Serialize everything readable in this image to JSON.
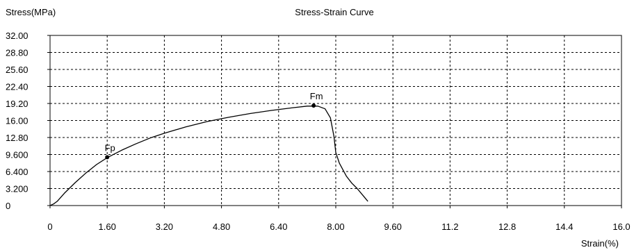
{
  "chart_data": {
    "type": "line",
    "title": "Stress-Strain Curve",
    "ylabel": "Stress(MPa)",
    "xlabel": "Strain(%)",
    "xlim": [
      0,
      16.0
    ],
    "ylim": [
      0,
      32.0
    ],
    "grid": true,
    "x_tick_values": [
      0,
      1.6,
      3.2,
      4.8,
      6.4,
      8.0,
      9.6,
      11.2,
      12.8,
      14.4,
      16.0
    ],
    "x_tick_labels": [
      "0",
      "1.60",
      "3.20",
      "4.80",
      "6.40",
      "8.00",
      "9.60",
      "11.2",
      "12.8",
      "14.4",
      "16.0"
    ],
    "y_tick_values": [
      0,
      3.2,
      6.4,
      9.6,
      12.8,
      16.0,
      19.2,
      22.4,
      25.6,
      28.8,
      32.0
    ],
    "y_tick_labels": [
      "0",
      "3.200",
      "6.400",
      "9.600",
      "12.80",
      "16.00",
      "19.20",
      "22.40",
      "25.60",
      "28.80",
      "32.00"
    ],
    "series": [
      {
        "color": "#000000",
        "points": [
          [
            0.0,
            0.0
          ],
          [
            0.1,
            0.3
          ],
          [
            0.2,
            0.8
          ],
          [
            0.4,
            2.3
          ],
          [
            0.7,
            4.3
          ],
          [
            1.0,
            6.1
          ],
          [
            1.3,
            7.7
          ],
          [
            1.6,
            9.0
          ],
          [
            2.0,
            10.4
          ],
          [
            2.4,
            11.6
          ],
          [
            2.8,
            12.7
          ],
          [
            3.2,
            13.6
          ],
          [
            3.8,
            14.8
          ],
          [
            4.4,
            15.8
          ],
          [
            5.0,
            16.6
          ],
          [
            5.6,
            17.3
          ],
          [
            6.2,
            17.9
          ],
          [
            6.8,
            18.4
          ],
          [
            7.2,
            18.7
          ],
          [
            7.5,
            18.7
          ],
          [
            7.7,
            18.2
          ],
          [
            7.85,
            16.5
          ],
          [
            7.95,
            13.0
          ],
          [
            8.0,
            10.0
          ],
          [
            8.1,
            8.0
          ],
          [
            8.3,
            5.5
          ],
          [
            8.45,
            4.2
          ],
          [
            8.6,
            3.2
          ],
          [
            8.75,
            2.0
          ],
          [
            8.9,
            0.8
          ]
        ]
      }
    ],
    "annotations": [
      {
        "label": "Fp",
        "x": 1.6,
        "y": 9.1
      },
      {
        "label": "Fm",
        "x": 7.38,
        "y": 18.8
      }
    ]
  }
}
